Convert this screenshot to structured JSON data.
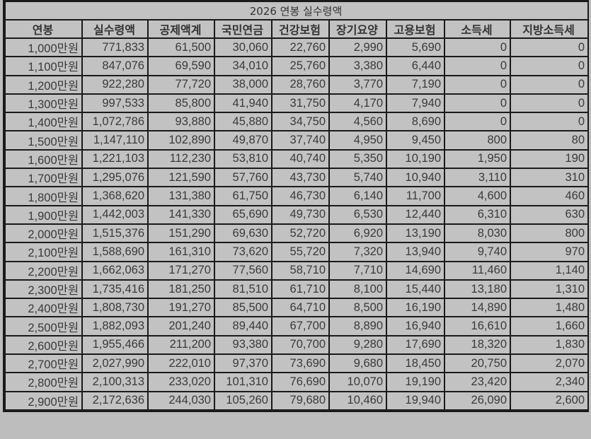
{
  "title": "2026 연봉 실수령액",
  "headers": [
    "연봉",
    "실수령액",
    "공제액계",
    "국민연금",
    "건강보험",
    "장기요양",
    "고용보험",
    "소득세",
    "지방소득세"
  ],
  "rows": [
    [
      "1,000만원",
      "771,833",
      "61,500",
      "30,060",
      "22,760",
      "2,990",
      "5,690",
      "0",
      "0"
    ],
    [
      "1,100만원",
      "847,076",
      "69,590",
      "34,010",
      "25,760",
      "3,380",
      "6,440",
      "0",
      "0"
    ],
    [
      "1,200만원",
      "922,280",
      "77,720",
      "38,000",
      "28,760",
      "3,770",
      "7,190",
      "0",
      "0"
    ],
    [
      "1,300만원",
      "997,533",
      "85,800",
      "41,940",
      "31,750",
      "4,170",
      "7,940",
      "0",
      "0"
    ],
    [
      "1,400만원",
      "1,072,786",
      "93,880",
      "45,880",
      "34,750",
      "4,560",
      "8,690",
      "0",
      "0"
    ],
    [
      "1,500만원",
      "1,147,110",
      "102,890",
      "49,870",
      "37,740",
      "4,950",
      "9,450",
      "800",
      "80"
    ],
    [
      "1,600만원",
      "1,221,103",
      "112,230",
      "53,810",
      "40,740",
      "5,350",
      "10,190",
      "1,950",
      "190"
    ],
    [
      "1,700만원",
      "1,295,076",
      "121,590",
      "57,760",
      "43,730",
      "5,740",
      "10,940",
      "3,110",
      "310"
    ],
    [
      "1,800만원",
      "1,368,620",
      "131,380",
      "61,750",
      "46,730",
      "6,140",
      "11,700",
      "4,600",
      "460"
    ],
    [
      "1,900만원",
      "1,442,003",
      "141,330",
      "65,690",
      "49,730",
      "6,530",
      "12,440",
      "6,310",
      "630"
    ],
    [
      "2,000만원",
      "1,515,376",
      "151,290",
      "69,630",
      "52,720",
      "6,920",
      "13,190",
      "8,030",
      "800"
    ],
    [
      "2,100만원",
      "1,588,690",
      "161,310",
      "73,620",
      "55,720",
      "7,320",
      "13,940",
      "9,740",
      "970"
    ],
    [
      "2,200만원",
      "1,662,063",
      "171,270",
      "77,560",
      "58,710",
      "7,710",
      "14,690",
      "11,460",
      "1,140"
    ],
    [
      "2,300만원",
      "1,735,416",
      "181,250",
      "81,510",
      "61,710",
      "8,100",
      "15,440",
      "13,180",
      "1,310"
    ],
    [
      "2,400만원",
      "1,808,730",
      "191,270",
      "85,500",
      "64,710",
      "8,500",
      "16,190",
      "14,890",
      "1,480"
    ],
    [
      "2,500만원",
      "1,882,093",
      "201,240",
      "89,440",
      "67,700",
      "8,890",
      "16,940",
      "16,610",
      "1,660"
    ],
    [
      "2,600만원",
      "1,955,466",
      "211,200",
      "93,380",
      "70,700",
      "9,280",
      "17,690",
      "18,320",
      "1,830"
    ],
    [
      "2,700만원",
      "2,027,990",
      "222,010",
      "97,370",
      "73,690",
      "9,680",
      "18,450",
      "20,750",
      "2,070"
    ],
    [
      "2,800만원",
      "2,100,313",
      "233,020",
      "101,310",
      "76,690",
      "10,070",
      "19,190",
      "23,420",
      "2,340"
    ],
    [
      "2,900만원",
      "2,172,636",
      "244,030",
      "105,260",
      "79,680",
      "10,460",
      "19,940",
      "26,090",
      "2,600"
    ]
  ]
}
